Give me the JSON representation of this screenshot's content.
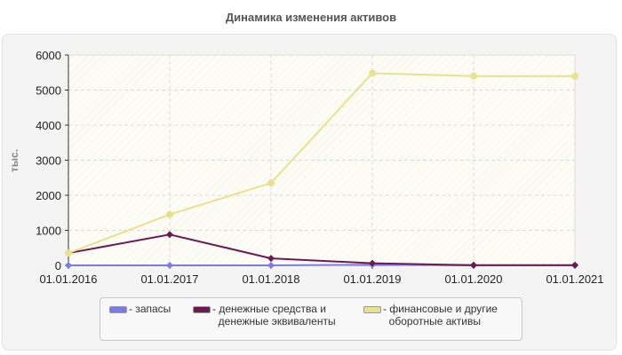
{
  "chart_data": {
    "type": "line",
    "title": "Динамика изменения активов",
    "ylabel": "тыс.",
    "xlabel": "",
    "categories": [
      "01.01.2016",
      "01.01.2017",
      "01.01.2018",
      "01.01.2019",
      "01.01.2020",
      "01.01.2021"
    ],
    "ylim": [
      0,
      6000
    ],
    "yticks": [
      "0",
      "1000",
      "2000",
      "3000",
      "4000",
      "5000",
      "6000"
    ],
    "grid": true,
    "legend_position": "bottom",
    "series": [
      {
        "name": "запасы",
        "color": "#7b7be8",
        "values": [
          0,
          0,
          0,
          20,
          0,
          0
        ]
      },
      {
        "name": "денежные средства и денежные эквиваленты",
        "color": "#6e1a52",
        "values": [
          350,
          880,
          200,
          60,
          5,
          5
        ]
      },
      {
        "name": "финансовые и другие оборотные активы",
        "color": "#e6e28f",
        "values": [
          350,
          1450,
          2350,
          5480,
          5400,
          5400
        ]
      }
    ]
  },
  "legend": [
    {
      "label": "- запасы"
    },
    {
      "label1": "- денежные средства и",
      "label2": "денежные эквиваленты"
    },
    {
      "label1": "- финансовые и другие",
      "label2": "оборотные активы"
    }
  ]
}
